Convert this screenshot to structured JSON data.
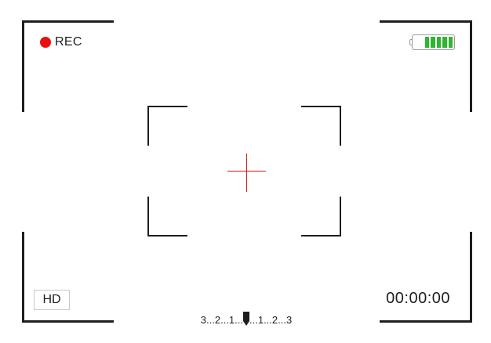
{
  "recording": {
    "label": "REC",
    "dot_color": "#e8110f"
  },
  "battery": {
    "level": 1.0,
    "cells": 5,
    "color": "#2fb52f"
  },
  "format": {
    "label": "HD"
  },
  "timecode": {
    "value": "00:00:00"
  },
  "exposure": {
    "left_scale": "3...2...1...",
    "right_scale": "...1...2...3",
    "marker_icon": "exposure-marker-icon",
    "value": 0
  },
  "crosshair": {
    "color": "#d41515",
    "icon": "crosshair-icon"
  },
  "frame": {
    "color": "#1e1e1e"
  }
}
